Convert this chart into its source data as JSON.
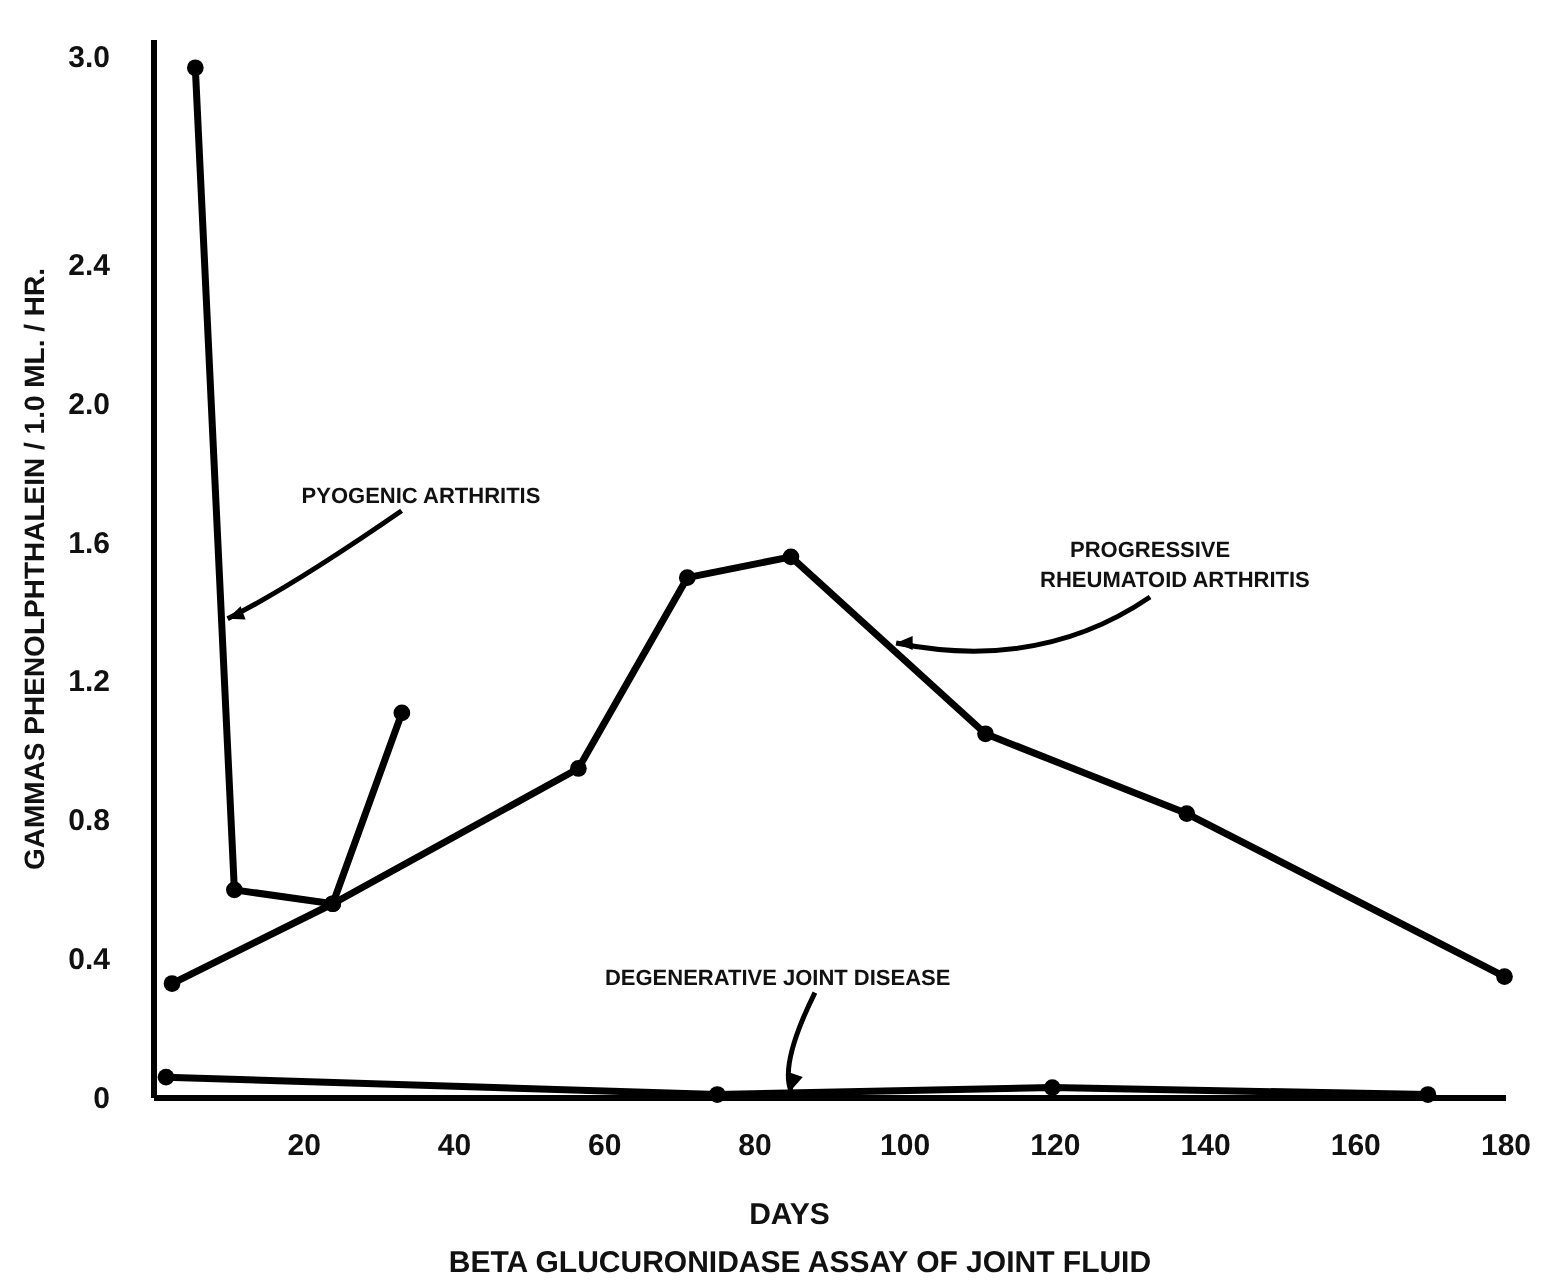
{
  "chart_data": {
    "type": "line",
    "title": "BETA GLUCURONIDASE ASSAY OF JOINT FLUID",
    "xlabel": "DAYS",
    "ylabel": "GAMMAS PHENOLPHTHALEIN / 1.0 ML. / HR.",
    "xlim": [
      0,
      180
    ],
    "xticks": [
      20,
      40,
      60,
      80,
      100,
      120,
      140,
      160,
      180
    ],
    "ylim": [
      0,
      3.05
    ],
    "yticks": [
      0,
      0.4,
      0.8,
      1.2,
      1.6,
      {
        "value": 2,
        "label": "2.0"
      },
      2.4,
      {
        "value": 3,
        "label": "3.0"
      }
    ],
    "marker": "circle",
    "grid": false,
    "series": [
      {
        "color": "#000000",
        "x": [
          5.5,
          10.7,
          23.8,
          33
        ],
        "values": [
          2.97,
          0.6,
          0.56,
          1.11
        ]
      },
      {
        "color": "#000000",
        "x": [
          2.4,
          23.8,
          56.5,
          71,
          84.8,
          110.7,
          137.5,
          179.8
        ],
        "values": [
          0.33,
          0.56,
          0.95,
          1.5,
          1.56,
          1.05,
          0.82,
          0.35
        ]
      },
      {
        "color": "#000000",
        "x": [
          1.6,
          75,
          119.6,
          169.6
        ],
        "values": [
          0.06,
          0.01,
          0.03,
          0.01
        ]
      }
    ],
    "annotations": [
      {
        "text": "PYOGENIC ARTHRITIS",
        "x": 9,
        "y": 1.37
      },
      {
        "text": "PROGRESSIVE RHEUMATOID ARTHRITIS",
        "x": 98,
        "y": 1.3
      },
      {
        "text": "DEGENERATIVE JOINT DISEASE",
        "x": 84,
        "y": 0.01
      }
    ]
  }
}
